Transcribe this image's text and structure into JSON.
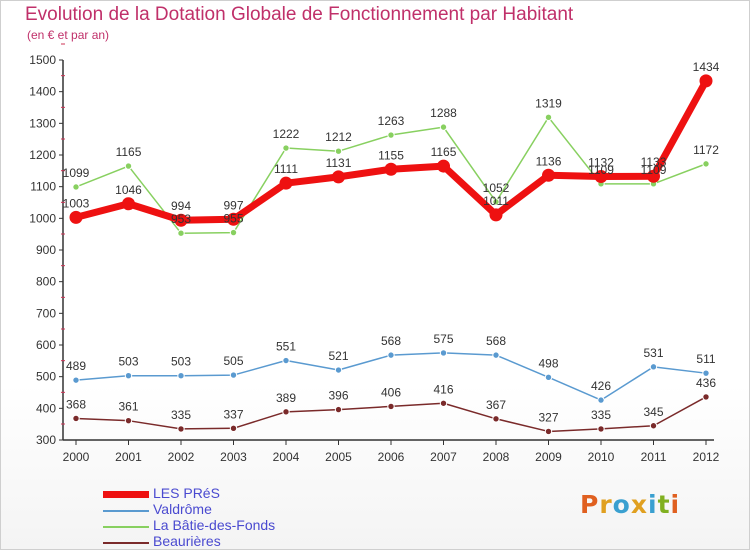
{
  "header": {
    "title": "Evolution de la Dotation Globale de Fonctionnement par Habitant",
    "subtitle": "(en € et par an)"
  },
  "logo": {
    "text": "Proxiti",
    "colors": [
      "#e06020",
      "#e0a020",
      "#3aa0d0",
      "#e0a020",
      "#3aa0d0",
      "#80b020",
      "#e06020"
    ]
  },
  "chart_data": {
    "type": "line",
    "x": [
      "2000",
      "2001",
      "2002",
      "2003",
      "2004",
      "2005",
      "2006",
      "2007",
      "2008",
      "2009",
      "2010",
      "2011",
      "2012"
    ],
    "ylim": [
      300,
      1500
    ],
    "yticks": [
      300,
      400,
      500,
      600,
      700,
      800,
      900,
      1000,
      1100,
      1200,
      1300,
      1400,
      1500
    ],
    "grid": false,
    "legend_position": "bottom-left",
    "series": [
      {
        "name": "LES PRéS",
        "color": "#ee1111",
        "values": [
          1003,
          1046,
          994,
          997,
          1111,
          1131,
          1155,
          1165,
          1011,
          1136,
          1132,
          1133,
          1434
        ]
      },
      {
        "name": "Valdrôme",
        "color": "#5a9ad0",
        "values": [
          489,
          503,
          503,
          505,
          551,
          521,
          568,
          575,
          568,
          498,
          426,
          531,
          511
        ]
      },
      {
        "name": "La Bâtie-des-Fonds",
        "color": "#88d060",
        "values": [
          1099,
          1165,
          953,
          955,
          1222,
          1212,
          1263,
          1288,
          1052,
          1319,
          1109,
          1109,
          1172
        ]
      },
      {
        "name": "Beaurières",
        "color": "#7a2a2a",
        "values": [
          368,
          361,
          335,
          337,
          389,
          396,
          406,
          416,
          367,
          327,
          335,
          345,
          436
        ]
      }
    ],
    "point_labels": {
      "LES PRéS": [
        "1003",
        "1046",
        "994",
        "997",
        "1111",
        "1131",
        "1155",
        "1165",
        "1011",
        "1136",
        "1132",
        "1133",
        "1434"
      ],
      "Valdrôme": [
        "489",
        "503",
        "503",
        "505",
        "551",
        "521",
        "568",
        "575",
        "568",
        "498",
        "426",
        "531",
        "511"
      ],
      "La Bâtie-des-Fonds": [
        "1099",
        "1165",
        "953",
        "955",
        "1222",
        "1212",
        "1263",
        "1288",
        "1052",
        "1319",
        "1109",
        "1109",
        "1172"
      ],
      "Beaurières": [
        "368",
        "361",
        "335",
        "337",
        "389",
        "396",
        "406",
        "416",
        "367",
        "327",
        "335",
        "345",
        "436"
      ]
    }
  }
}
